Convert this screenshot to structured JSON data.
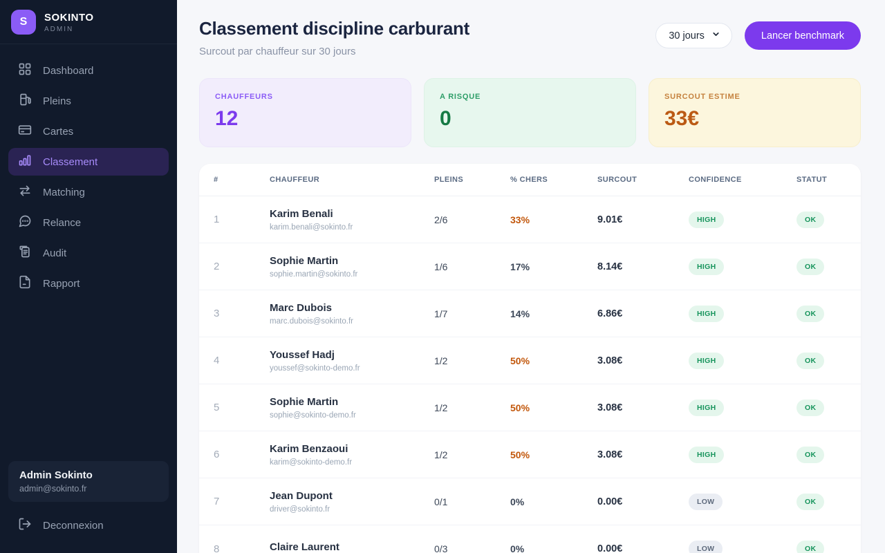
{
  "brand": {
    "logo_letter": "S",
    "name": "SOKINTO",
    "role": "ADMIN"
  },
  "sidebar": {
    "items": [
      {
        "label": "Dashboard",
        "icon": "dashboard-icon",
        "active": false
      },
      {
        "label": "Pleins",
        "icon": "fuel-pump-icon",
        "active": false
      },
      {
        "label": "Cartes",
        "icon": "credit-card-icon",
        "active": false
      },
      {
        "label": "Classement",
        "icon": "bar-chart-icon",
        "active": true
      },
      {
        "label": "Matching",
        "icon": "swap-arrows-icon",
        "active": false
      },
      {
        "label": "Relance",
        "icon": "chat-bubble-icon",
        "active": false
      },
      {
        "label": "Audit",
        "icon": "clipboard-icon",
        "active": false
      },
      {
        "label": "Rapport",
        "icon": "document-icon",
        "active": false
      }
    ],
    "user": {
      "name": "Admin Sokinto",
      "email": "admin@sokinto.fr"
    },
    "logout_label": "Deconnexion"
  },
  "header": {
    "title": "Classement discipline carburant",
    "subtitle": "Surcout par chauffeur sur 30 jours",
    "period_selected": "30 jours",
    "benchmark_button": "Lancer benchmark"
  },
  "stats": [
    {
      "label": "CHAUFFEURS",
      "value": "12",
      "theme": "purple"
    },
    {
      "label": "A RISQUE",
      "value": "0",
      "theme": "green"
    },
    {
      "label": "SURCOUT ESTIME",
      "value": "33€",
      "theme": "yellow"
    }
  ],
  "table": {
    "columns": [
      "#",
      "CHAUFFEUR",
      "PLEINS",
      "% CHERS",
      "SURCOUT",
      "CONFIDENCE",
      "STATUT"
    ],
    "rows": [
      {
        "rank": "1",
        "name": "Karim Benali",
        "email": "karim.benali@sokinto.fr",
        "pleins": "2/6",
        "pct": "33%",
        "pct_hot": true,
        "surcout": "9.01€",
        "confidence": "HIGH",
        "statut": "OK"
      },
      {
        "rank": "2",
        "name": "Sophie Martin",
        "email": "sophie.martin@sokinto.fr",
        "pleins": "1/6",
        "pct": "17%",
        "pct_hot": false,
        "surcout": "8.14€",
        "confidence": "HIGH",
        "statut": "OK"
      },
      {
        "rank": "3",
        "name": "Marc Dubois",
        "email": "marc.dubois@sokinto.fr",
        "pleins": "1/7",
        "pct": "14%",
        "pct_hot": false,
        "surcout": "6.86€",
        "confidence": "HIGH",
        "statut": "OK"
      },
      {
        "rank": "4",
        "name": "Youssef Hadj",
        "email": "youssef@sokinto-demo.fr",
        "pleins": "1/2",
        "pct": "50%",
        "pct_hot": true,
        "surcout": "3.08€",
        "confidence": "HIGH",
        "statut": "OK"
      },
      {
        "rank": "5",
        "name": "Sophie Martin",
        "email": "sophie@sokinto-demo.fr",
        "pleins": "1/2",
        "pct": "50%",
        "pct_hot": true,
        "surcout": "3.08€",
        "confidence": "HIGH",
        "statut": "OK"
      },
      {
        "rank": "6",
        "name": "Karim Benzaoui",
        "email": "karim@sokinto-demo.fr",
        "pleins": "1/2",
        "pct": "50%",
        "pct_hot": true,
        "surcout": "3.08€",
        "confidence": "HIGH",
        "statut": "OK"
      },
      {
        "rank": "7",
        "name": "Jean Dupont",
        "email": "driver@sokinto.fr",
        "pleins": "0/1",
        "pct": "0%",
        "pct_hot": false,
        "surcout": "0.00€",
        "confidence": "LOW",
        "statut": "OK"
      },
      {
        "rank": "8",
        "name": "Claire Laurent",
        "email": "",
        "pleins": "0/3",
        "pct": "0%",
        "pct_hot": false,
        "surcout": "0.00€",
        "confidence": "LOW",
        "statut": "OK"
      }
    ]
  },
  "colors": {
    "sidebar_bg": "#111a2b",
    "accent_purple": "#7c3aed",
    "logo_purple": "#8b5cf6",
    "active_nav_bg": "#2a2353",
    "hot_percent": "#c2570b",
    "pill_green_text": "#17945c",
    "pill_green_bg": "#e4f6ec",
    "pill_gray_text": "#5f6b7d",
    "pill_gray_bg": "#eaedf3",
    "main_bg": "#f6f7fa"
  }
}
